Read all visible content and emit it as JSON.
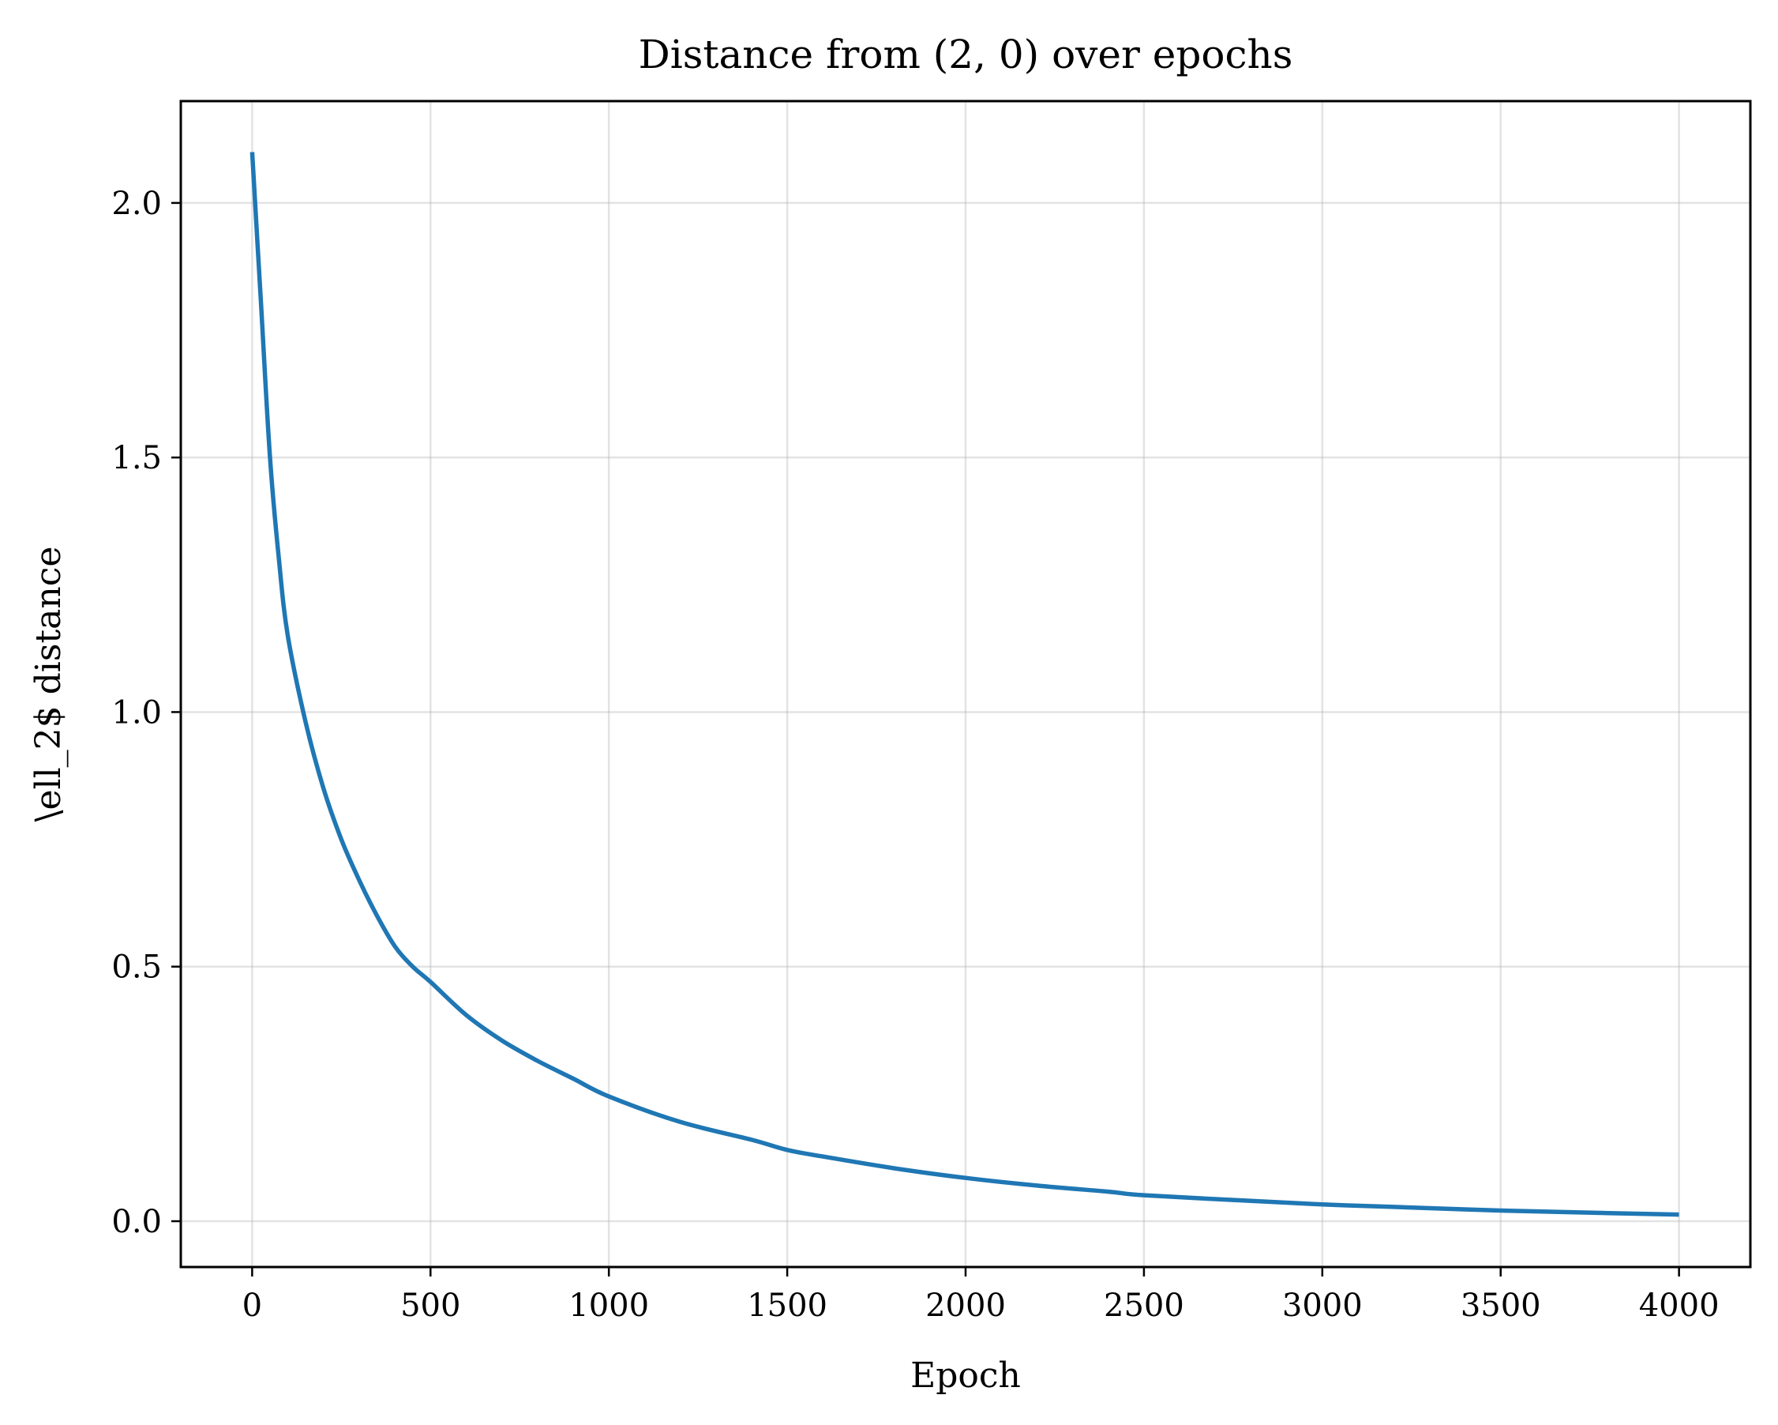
{
  "chart_data": {
    "type": "line",
    "title": "Distance from (2, 0) over epochs",
    "xlabel": "Epoch",
    "ylabel": "\\ell_2$ distance",
    "xlim": [
      -200,
      4200
    ],
    "ylim": [
      -0.09,
      2.2
    ],
    "xticks": [
      0,
      500,
      1000,
      1500,
      2000,
      2500,
      3000,
      3500,
      4000
    ],
    "xtick_labels": [
      "0",
      "500",
      "1000",
      "1500",
      "2000",
      "2500",
      "3000",
      "3500",
      "4000"
    ],
    "yticks": [
      0.0,
      0.5,
      1.0,
      1.5,
      2.0
    ],
    "ytick_labels": [
      "0.0",
      "0.5",
      "1.0",
      "1.5",
      "2.0"
    ],
    "grid": true,
    "series": [
      {
        "color": "#1f77b4",
        "x": [
          0,
          25,
          50,
          75,
          100,
          150,
          200,
          250,
          300,
          350,
          400,
          450,
          500,
          600,
          700,
          800,
          900,
          1000,
          1200,
          1400,
          1500,
          1600,
          1800,
          2000,
          2200,
          2400,
          2500,
          2800,
          3000,
          3200,
          3500,
          3800,
          4000
        ],
        "y": [
          2.1,
          1.8,
          1.5,
          1.3,
          1.15,
          0.98,
          0.85,
          0.75,
          0.67,
          0.6,
          0.54,
          0.5,
          0.47,
          0.405,
          0.355,
          0.315,
          0.28,
          0.245,
          0.195,
          0.16,
          0.14,
          0.127,
          0.104,
          0.085,
          0.07,
          0.058,
          0.051,
          0.04,
          0.033,
          0.028,
          0.021,
          0.016,
          0.013
        ]
      }
    ]
  }
}
